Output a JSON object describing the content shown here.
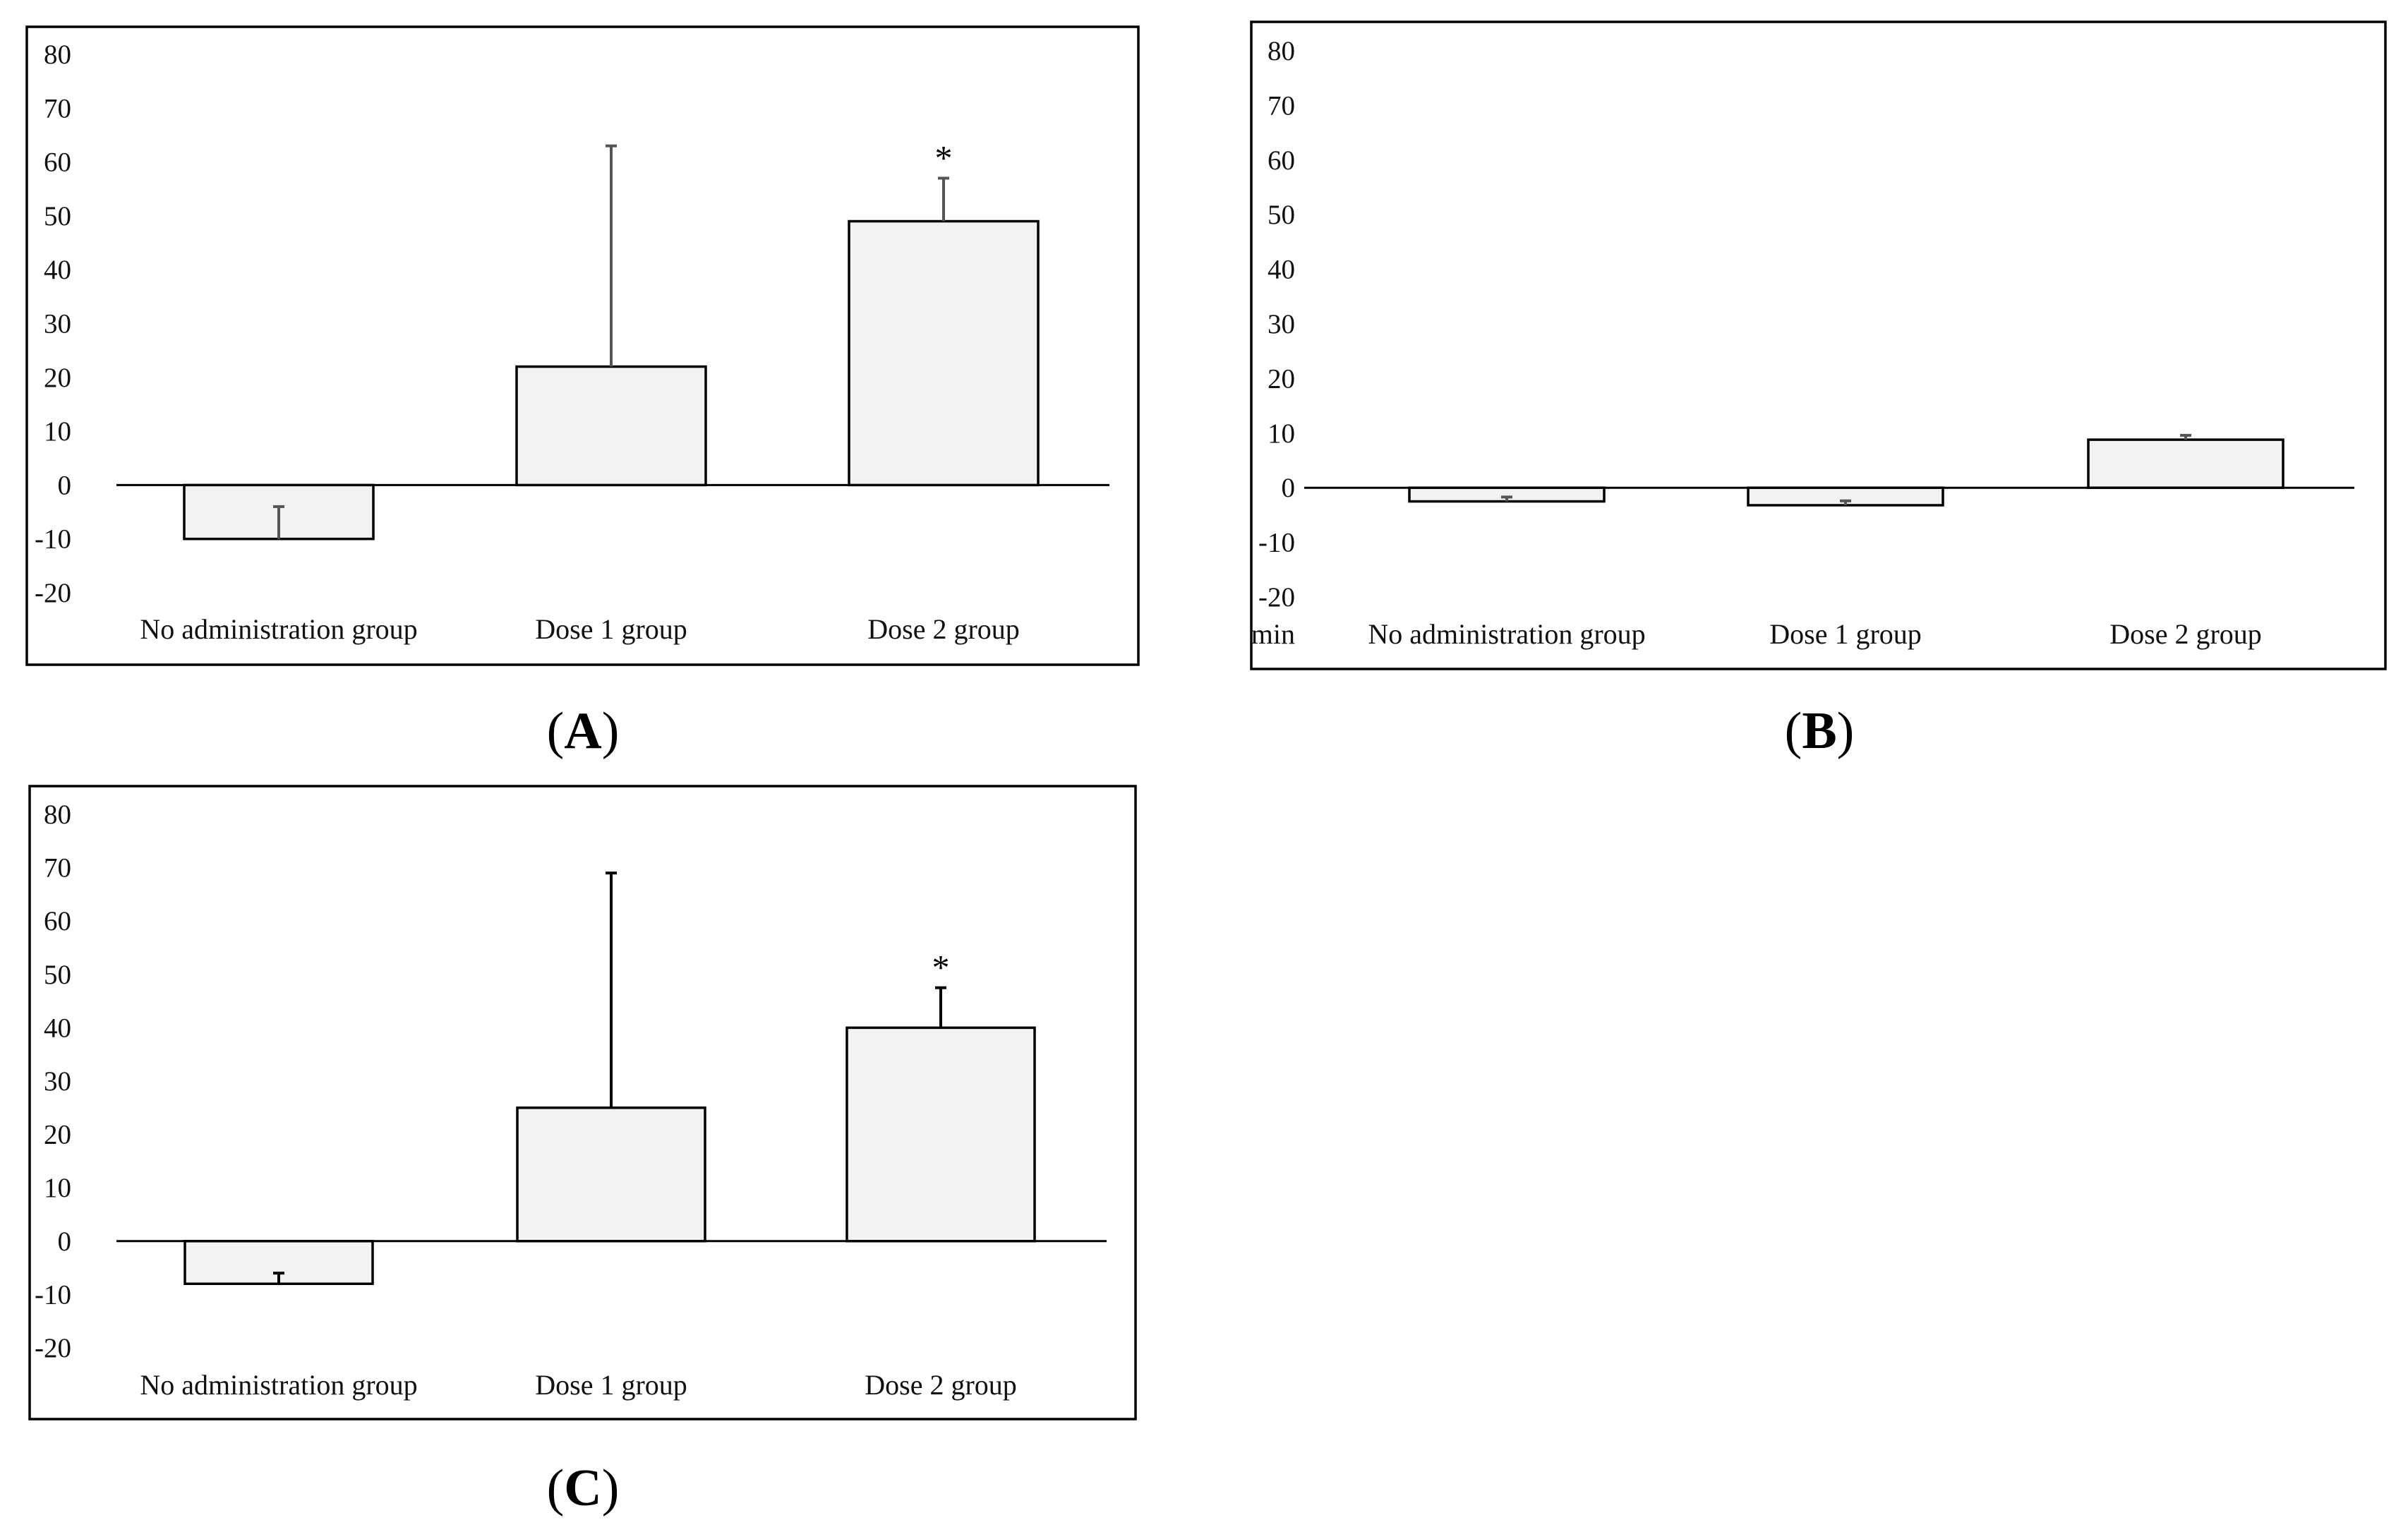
{
  "chart_data": [
    {
      "type": "bar",
      "panel": "A",
      "categories": [
        "No administration group",
        "Dose 1 group",
        "Dose 2 group"
      ],
      "values": [
        -10,
        22,
        49
      ],
      "error_bars": [
        6,
        41,
        8
      ],
      "annotations": [
        "",
        "",
        "*"
      ],
      "ylim": [
        -20,
        80
      ],
      "yticks": [
        80,
        70,
        60,
        50,
        40,
        30,
        20,
        10,
        0,
        -10,
        -20
      ],
      "unit_label": "",
      "colors": {
        "bar_fill": "#f2f2f2",
        "bar_stroke": "#000000",
        "error": "#555555"
      }
    },
    {
      "type": "bar",
      "panel": "B",
      "categories": [
        "No administration group",
        "Dose 1 group",
        "Dose 2 group"
      ],
      "values": [
        -2.5,
        -3.2,
        8.8
      ],
      "error_bars": [
        0.8,
        0.8,
        0.8
      ],
      "annotations": [
        "",
        "",
        ""
      ],
      "ylim": [
        -20,
        80
      ],
      "yticks": [
        80,
        70,
        60,
        50,
        40,
        30,
        20,
        10,
        0,
        -10,
        -20
      ],
      "unit_label": "min",
      "colors": {
        "bar_fill": "#f2f2f2",
        "bar_stroke": "#000000",
        "error": "#555555"
      }
    },
    {
      "type": "bar",
      "panel": "C",
      "categories": [
        "No administration group",
        "Dose 1 group",
        "Dose 2 group"
      ],
      "values": [
        -8,
        25,
        40
      ],
      "error_bars": [
        2,
        44,
        7.5
      ],
      "annotations": [
        "",
        "",
        "*"
      ],
      "ylim": [
        -20,
        80
      ],
      "yticks": [
        80,
        70,
        60,
        50,
        40,
        30,
        20,
        10,
        0,
        -10,
        -20
      ],
      "unit_label": "",
      "colors": {
        "bar_fill": "#f2f2f2",
        "bar_stroke": "#000000",
        "error": "#000000"
      }
    }
  ],
  "panel_labels": {
    "A": "A",
    "B": "B",
    "C": "C"
  }
}
